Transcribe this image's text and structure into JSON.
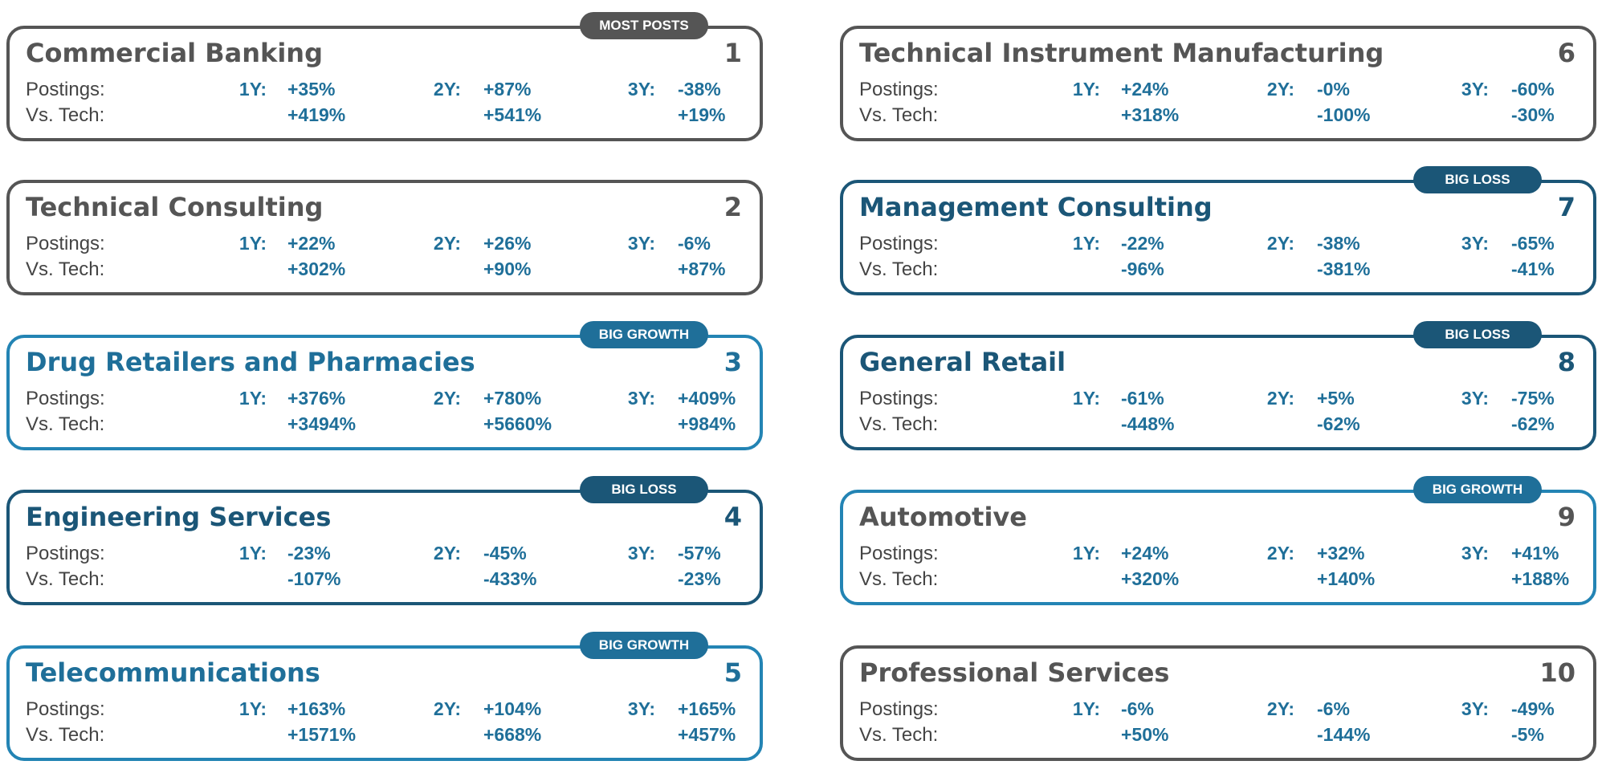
{
  "row_labels": [
    "Postings:",
    "Vs. Tech:"
  ],
  "period_labels": [
    "1Y:",
    "2Y:",
    "3Y:"
  ],
  "cards": [
    {
      "name": "Commercial Banking",
      "rank": "1",
      "badge": "MOST POSTS",
      "badge_color": "#555555",
      "border_color": "#555555",
      "title_color": "#555555",
      "postings": [
        "+35%",
        "+87%",
        "-38%"
      ],
      "vs_tech": [
        "+419%",
        "+541%",
        "+19%"
      ]
    },
    {
      "name": "Technical Consulting",
      "rank": "2",
      "border_color": "#555555",
      "title_color": "#555555",
      "postings": [
        "+22%",
        "+26%",
        "-6%"
      ],
      "vs_tech": [
        "+302%",
        "+90%",
        "+87%"
      ]
    },
    {
      "name": "Drug Retailers and Pharmacies",
      "rank": "3",
      "badge": "BIG GROWTH",
      "badge_color": "#1f6f99",
      "border_color": "#2384b4",
      "title_color": "#1f6f99",
      "postings": [
        "+376%",
        "+780%",
        "+409%"
      ],
      "vs_tech": [
        "+3494%",
        "+5660%",
        "+984%"
      ]
    },
    {
      "name": "Engineering Services",
      "rank": "4",
      "badge": "BIG LOSS",
      "badge_color": "#1b5677",
      "border_color": "#1b5677",
      "title_color": "#1b5677",
      "postings": [
        "-23%",
        "-45%",
        "-57%"
      ],
      "vs_tech": [
        "-107%",
        "-433%",
        "-23%"
      ]
    },
    {
      "name": "Telecommunications",
      "rank": "5",
      "badge": "BIG GROWTH",
      "badge_color": "#1f6f99",
      "border_color": "#2384b4",
      "title_color": "#1f6f99",
      "postings": [
        "+163%",
        "+104%",
        "+165%"
      ],
      "vs_tech": [
        "+1571%",
        "+668%",
        "+457%"
      ]
    },
    {
      "name": "Technical Instrument Manufacturing",
      "rank": "6",
      "border_color": "#555555",
      "title_color": "#555555",
      "postings": [
        "+24%",
        "-0%",
        "-60%"
      ],
      "vs_tech": [
        "+318%",
        "-100%",
        "-30%"
      ]
    },
    {
      "name": "Management Consulting",
      "rank": "7",
      "badge": "BIG LOSS",
      "badge_color": "#1b5677",
      "border_color": "#1b5677",
      "title_color": "#1b5677",
      "postings": [
        "-22%",
        "-38%",
        "-65%"
      ],
      "vs_tech": [
        "-96%",
        "-381%",
        "-41%"
      ]
    },
    {
      "name": "General Retail",
      "rank": "8",
      "badge": "BIG LOSS",
      "badge_color": "#1b5677",
      "border_color": "#1b5677",
      "title_color": "#1b5677",
      "postings": [
        "-61%",
        "+5%",
        "-75%"
      ],
      "vs_tech": [
        "-448%",
        "-62%",
        "-62%"
      ]
    },
    {
      "name": "Automotive",
      "rank": "9",
      "badge": "BIG GROWTH",
      "badge_color": "#1f6f99",
      "border_color": "#2384b4",
      "title_color": "#555555",
      "postings": [
        "+24%",
        "+32%",
        "+41%"
      ],
      "vs_tech": [
        "+320%",
        "+140%",
        "+188%"
      ]
    },
    {
      "name": "Professional Services",
      "rank": "10",
      "border_color": "#555555",
      "title_color": "#555555",
      "postings": [
        "-6%",
        "-6%",
        "-49%"
      ],
      "vs_tech": [
        "+50%",
        "-144%",
        "-5%"
      ]
    }
  ]
}
